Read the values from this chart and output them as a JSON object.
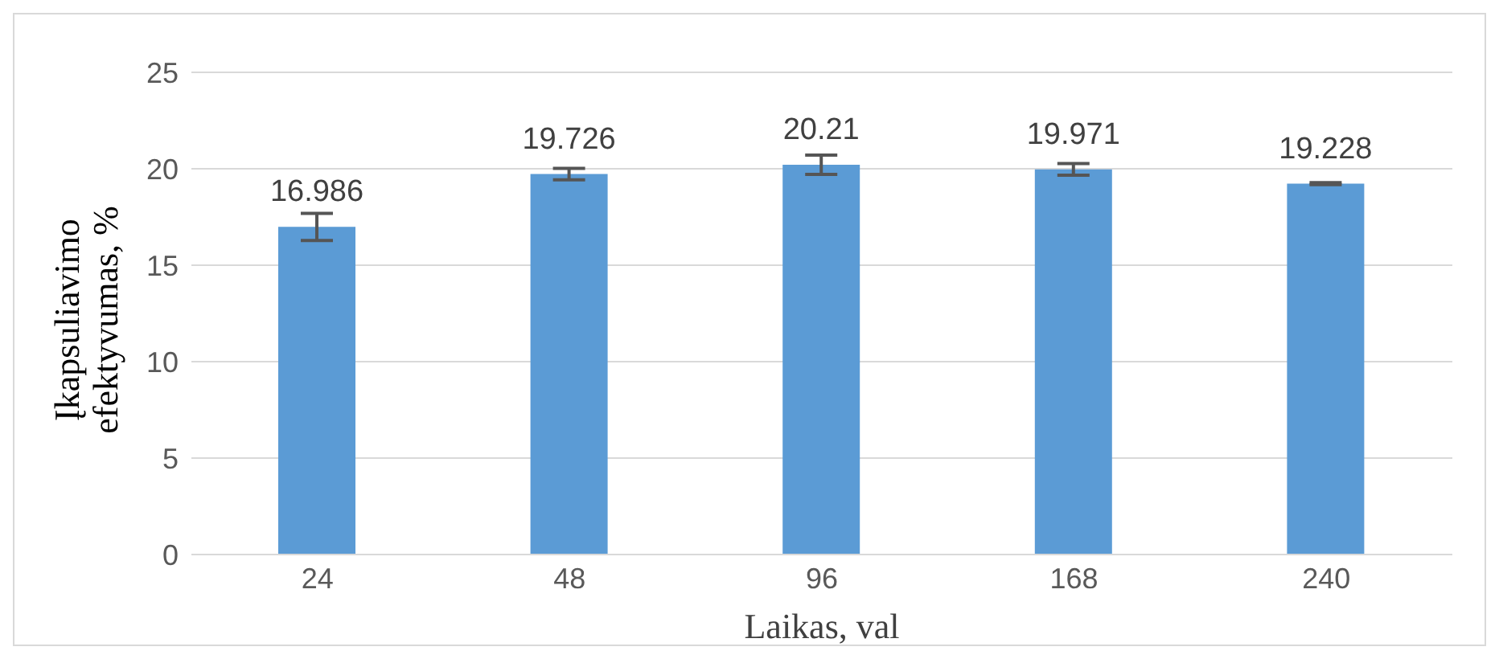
{
  "chart_data": {
    "type": "bar",
    "xlabel": "Laikas, val",
    "ylabel": "Įkapsuliavimo efektyvumas, %",
    "categories": [
      "24",
      "48",
      "96",
      "168",
      "240"
    ],
    "values": [
      16.986,
      19.726,
      20.21,
      19.971,
      19.228
    ],
    "errors": [
      0.7,
      0.3,
      0.5,
      0.3,
      0.05
    ],
    "color": "#5b9bd5",
    "ylim": [
      0,
      25
    ],
    "yticks": [
      0,
      5,
      10,
      15,
      20,
      25
    ],
    "grid": "y",
    "data_labels": true
  }
}
